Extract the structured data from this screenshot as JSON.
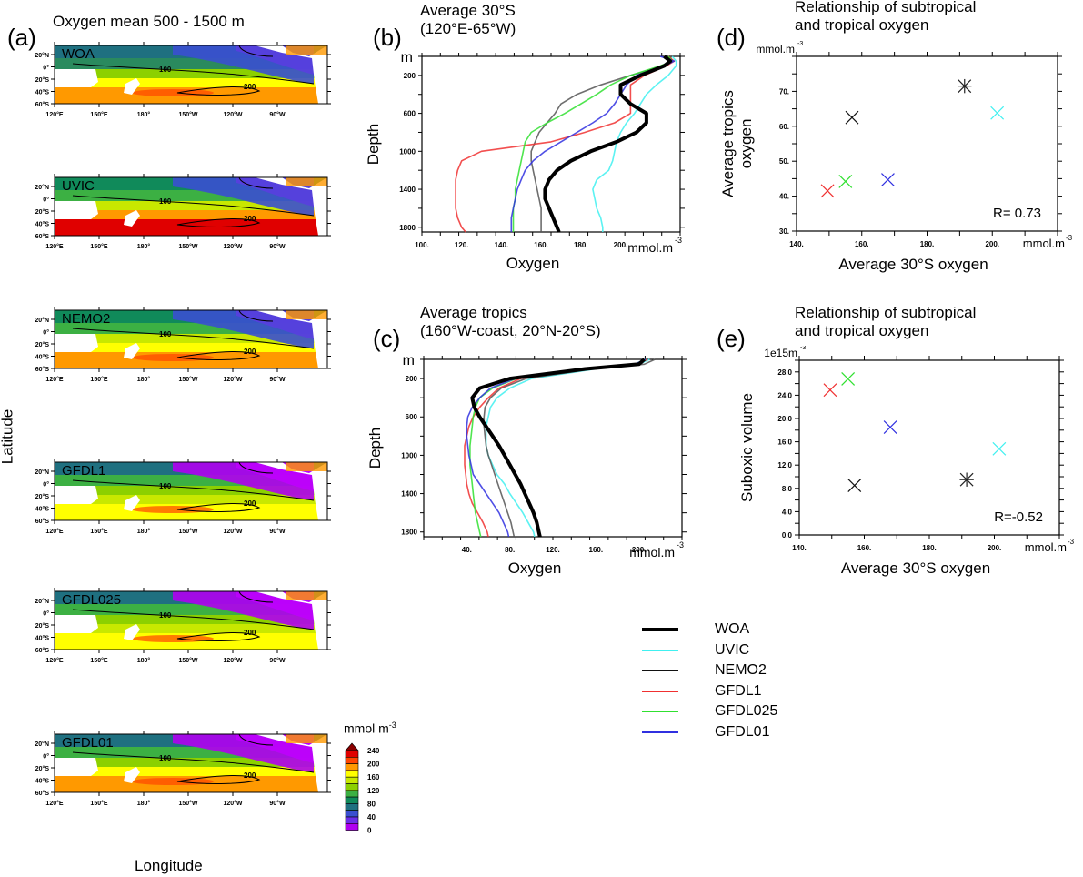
{
  "figure": {
    "panel_labels": [
      "(a)",
      "(b)",
      "(c)",
      "(d)",
      "(e)"
    ],
    "map_title": "Oxygen mean 500 - 1500 m",
    "map_xlabel": "Longitude",
    "map_ylabel": "Latitude",
    "map_lon_ticks": [
      "120°E",
      "150°E",
      "180°",
      "150°W",
      "120°W",
      "90°W"
    ],
    "map_lat_ticks": [
      "20°N",
      "0°",
      "20°S",
      "40°S",
      "60°S"
    ],
    "map_contour_labels": [
      "100",
      "200"
    ],
    "maps": [
      {
        "name": "WOA"
      },
      {
        "name": "UVIC"
      },
      {
        "name": "NEMO2"
      },
      {
        "name": "GFDL1"
      },
      {
        "name": "GFDL025"
      },
      {
        "name": "GFDL01"
      }
    ],
    "colorbar": {
      "title": "mmol m",
      "title_sup": "-3",
      "tick_labels": [
        "240",
        "200",
        "160",
        "120",
        "80",
        "40",
        "0"
      ],
      "colors": [
        "#8b0000",
        "#e00000",
        "#ff4500",
        "#ff9900",
        "#ffff00",
        "#c8e800",
        "#8cd000",
        "#3cb043",
        "#108a5a",
        "#1f7080",
        "#3a4fd0",
        "#6a2ee8",
        "#b000f0"
      ]
    },
    "legend": [
      {
        "name": "WOA",
        "color": "#000000",
        "thick": true
      },
      {
        "name": "UVIC",
        "color": "#40f0f0",
        "thick": false
      },
      {
        "name": "NEMO2",
        "color": "#111111",
        "thick": false
      },
      {
        "name": "GFDL1",
        "color": "#f03030",
        "thick": false
      },
      {
        "name": "GFDL025",
        "color": "#30e030",
        "thick": false
      },
      {
        "name": "GFDL01",
        "color": "#3030e0",
        "thick": false
      }
    ]
  },
  "chart_data": [
    {
      "id": "b",
      "type": "line",
      "title": [
        "Average 30°S",
        "(120°E-65°W)"
      ],
      "xlabel": "Oxygen",
      "ylabel": "Depth",
      "xunit": "mmol.m",
      "xunit_sup": "-3",
      "yunit": "m",
      "xlim": [
        100,
        230
      ],
      "ylim": [
        1850,
        0
      ],
      "xticks": [
        100,
        120,
        140,
        160,
        180,
        200
      ],
      "xtick_labels": [
        "100.",
        "120.",
        "140.",
        "160.",
        "180.",
        "200."
      ],
      "yticks": [
        200,
        600,
        1000,
        1400,
        1800
      ],
      "ytick_labels": [
        "200",
        "600",
        "1000",
        "1400",
        "1800"
      ],
      "depth": [
        0,
        50,
        100,
        200,
        300,
        400,
        500,
        600,
        700,
        800,
        900,
        1000,
        1100,
        1200,
        1300,
        1400,
        1500,
        1600,
        1700,
        1800,
        1850
      ],
      "series": [
        {
          "name": "WOA",
          "values": [
            222,
            225,
            222,
            210,
            200,
            200,
            205,
            213,
            213,
            208,
            198,
            185,
            175,
            168,
            164,
            162,
            162,
            164,
            166,
            168,
            169
          ]
        },
        {
          "name": "UVIC",
          "values": [
            226,
            228,
            228,
            224,
            218,
            213,
            210,
            207,
            203,
            200,
            198,
            197,
            196,
            194,
            188,
            186,
            187,
            188,
            190,
            191,
            191
          ]
        },
        {
          "name": "NEMO2",
          "values": [
            225,
            226,
            222,
            205,
            190,
            178,
            170,
            167,
            163,
            159,
            157,
            155,
            155,
            156,
            157,
            158,
            159,
            160,
            160,
            160,
            160
          ]
        },
        {
          "name": "GFDL1",
          "values": [
            224,
            227,
            223,
            212,
            205,
            205,
            205,
            205,
            197,
            182,
            165,
            130,
            120,
            118,
            117,
            117,
            117,
            117,
            118,
            120,
            122
          ]
        },
        {
          "name": "GFDL025",
          "values": [
            224,
            226,
            220,
            205,
            195,
            188,
            180,
            172,
            163,
            155,
            152,
            151,
            150,
            149,
            148,
            147,
            147,
            146,
            146,
            146,
            146
          ]
        },
        {
          "name": "GFDL01",
          "values": [
            220,
            227,
            222,
            208,
            203,
            200,
            197,
            193,
            186,
            178,
            170,
            162,
            156,
            152,
            150,
            148,
            147,
            146,
            145,
            145,
            145
          ]
        }
      ]
    },
    {
      "id": "c",
      "type": "line",
      "title": [
        "Average tropics",
        "(160°W-coast, 20°N-20°S)"
      ],
      "xlabel": "Oxygen",
      "ylabel": "Depth",
      "xunit": "mmol.m",
      "xunit_sup": "-3",
      "yunit": "m",
      "xlim": [
        0,
        240
      ],
      "ylim": [
        1850,
        0
      ],
      "xticks": [
        40,
        80,
        120,
        160,
        200
      ],
      "xtick_labels": [
        "40.",
        "80.",
        "120.",
        "160.",
        "200."
      ],
      "yticks": [
        200,
        600,
        1000,
        1400,
        1800
      ],
      "ytick_labels": [
        "200",
        "600",
        "1000",
        "1400",
        "1800"
      ],
      "depth": [
        0,
        50,
        100,
        200,
        300,
        400,
        500,
        600,
        700,
        800,
        900,
        1000,
        1100,
        1200,
        1300,
        1400,
        1500,
        1600,
        1700,
        1800,
        1850
      ],
      "series": [
        {
          "name": "WOA",
          "values": [
            205,
            200,
            150,
            80,
            52,
            45,
            47,
            52,
            58,
            64,
            70,
            75,
            80,
            85,
            90,
            94,
            98,
            102,
            105,
            107,
            108
          ]
        },
        {
          "name": "UVIC",
          "values": [
            210,
            200,
            160,
            100,
            80,
            68,
            62,
            60,
            58,
            58,
            58,
            60,
            64,
            68,
            75,
            80,
            86,
            92,
            97,
            102,
            103
          ]
        },
        {
          "name": "NEMO2",
          "values": [
            215,
            205,
            158,
            95,
            72,
            62,
            57,
            56,
            56,
            57,
            58,
            60,
            63,
            66,
            69,
            72,
            75,
            78,
            81,
            83,
            84
          ]
        },
        {
          "name": "GFDL1",
          "values": [
            208,
            198,
            152,
            90,
            70,
            60,
            52,
            46,
            42,
            40,
            38,
            38,
            38,
            39,
            40,
            42,
            45,
            50,
            55,
            59,
            60
          ]
        },
        {
          "name": "GFDL025",
          "values": [
            206,
            196,
            148,
            86,
            64,
            52,
            48,
            46,
            45,
            44,
            43,
            43,
            43,
            44,
            45,
            46,
            47,
            48,
            50,
            52,
            53
          ]
        },
        {
          "name": "GFDL01",
          "values": [
            206,
            196,
            148,
            85,
            62,
            52,
            45,
            41,
            40,
            40,
            41,
            42,
            44,
            46,
            52,
            58,
            64,
            70,
            74,
            78,
            79
          ]
        }
      ]
    },
    {
      "id": "d",
      "type": "scatter",
      "title": [
        "Relationship of subtropical",
        "and tropical oxygen"
      ],
      "xlabel": "Average 30°S oxygen",
      "ylabel": [
        "Average tropics",
        "oxygen"
      ],
      "xunit": "mmol.m",
      "xunit_sup": "-3",
      "yunit": "mmol.m",
      "yunit_sup": "-3",
      "xlim": [
        140,
        220
      ],
      "ylim": [
        30,
        80
      ],
      "xticks": [
        140,
        160,
        180,
        200
      ],
      "xtick_labels": [
        "140.",
        "160.",
        "180.",
        "200."
      ],
      "yticks": [
        30,
        40,
        50,
        60,
        70
      ],
      "ytick_labels": [
        "30.",
        "40.",
        "50.",
        "60.",
        "70."
      ],
      "annotation": "R= 0.73",
      "points": [
        {
          "name": "WOA",
          "x": 191.5,
          "y": 71.5,
          "marker": "asterisk"
        },
        {
          "name": "UVIC",
          "x": 201.5,
          "y": 63.8,
          "marker": "x"
        },
        {
          "name": "NEMO2",
          "x": 157,
          "y": 62.5,
          "marker": "x"
        },
        {
          "name": "GFDL1",
          "x": 149.5,
          "y": 41.5,
          "marker": "x"
        },
        {
          "name": "GFDL025",
          "x": 155,
          "y": 44.2,
          "marker": "x"
        },
        {
          "name": "GFDL01",
          "x": 168,
          "y": 44.7,
          "marker": "x"
        }
      ]
    },
    {
      "id": "e",
      "type": "scatter",
      "title": [
        "Relationship of subtropical",
        "and tropical oxygen"
      ],
      "xlabel": "Average 30°S oxygen",
      "ylabel": [
        "Suboxic volume"
      ],
      "xunit": "mmol.m",
      "xunit_sup": "-3",
      "yunit": "1e15m",
      "yunit_sup": "-3",
      "xlim": [
        140,
        220
      ],
      "ylim": [
        0,
        30
      ],
      "xticks": [
        140,
        160,
        180,
        200
      ],
      "xtick_labels": [
        "140.",
        "160.",
        "180.",
        "200."
      ],
      "yticks": [
        0,
        4,
        8,
        12,
        16,
        20,
        24,
        28
      ],
      "ytick_labels": [
        "0.0",
        "4.0",
        "8.0",
        "12.0",
        "16.0",
        "20.0",
        "24.0",
        "28.0"
      ],
      "annotation": "R=-0.52",
      "points": [
        {
          "name": "WOA",
          "x": 191.5,
          "y": 9.5,
          "marker": "asterisk"
        },
        {
          "name": "UVIC",
          "x": 201.5,
          "y": 14.8,
          "marker": "x"
        },
        {
          "name": "NEMO2",
          "x": 157,
          "y": 8.5,
          "marker": "x"
        },
        {
          "name": "GFDL1",
          "x": 149.5,
          "y": 24.9,
          "marker": "x"
        },
        {
          "name": "GFDL025",
          "x": 155,
          "y": 26.8,
          "marker": "x"
        },
        {
          "name": "GFDL01",
          "x": 168,
          "y": 18.5,
          "marker": "x"
        }
      ]
    }
  ]
}
